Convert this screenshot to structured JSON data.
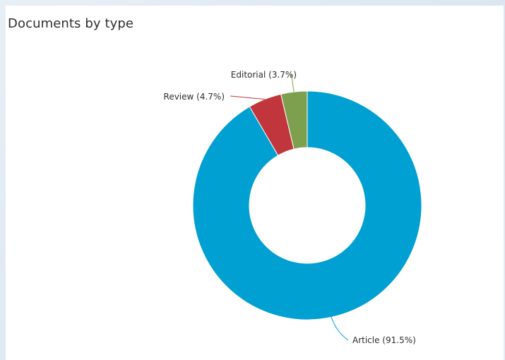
{
  "header": {
    "title": "Documents by type"
  },
  "chart_data": {
    "type": "pie",
    "title": "Documents by type",
    "donut": true,
    "start_slice": "Article",
    "direction": "clockwise",
    "slices": [
      {
        "name": "Article",
        "percent": 91.5,
        "label": "Article (91.5%)",
        "color": "#00a0d2"
      },
      {
        "name": "Review",
        "percent": 4.7,
        "label": "Review (4.7%)",
        "color": "#c1363c"
      },
      {
        "name": "Editorial",
        "percent": 3.7,
        "label": "Editorial (3.7%)",
        "color": "#7da04e"
      }
    ],
    "leader_colors": {
      "Article": "#00a0d2",
      "Review": "#c1363c",
      "Editorial": "#7da04e"
    }
  }
}
